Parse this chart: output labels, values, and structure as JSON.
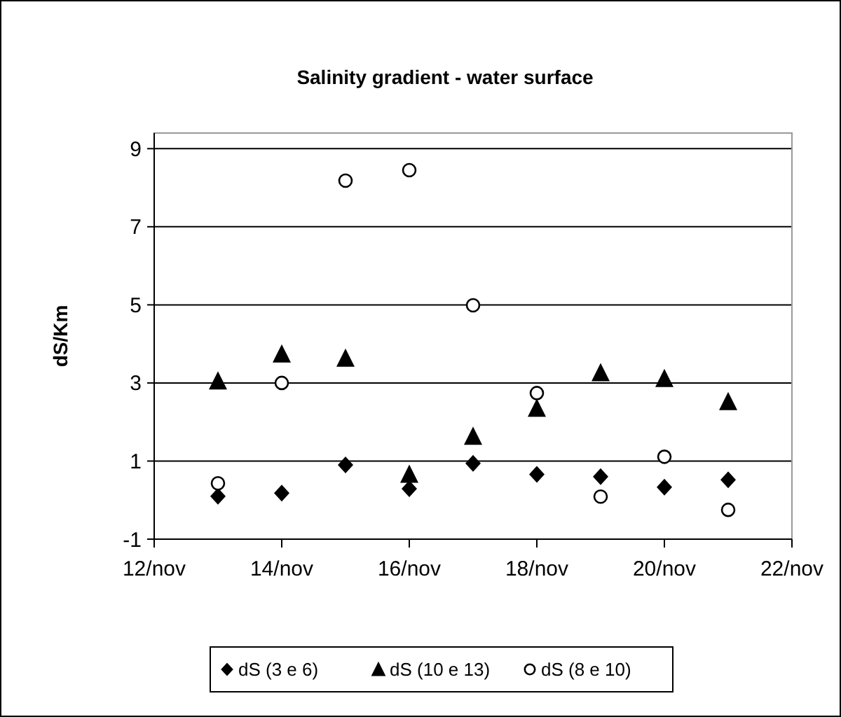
{
  "chart_data": {
    "type": "scatter",
    "title": "Salinity gradient - water surface",
    "ylabel": "dS/Km",
    "x": [
      "--11-13",
      "--11-14",
      "--11-15",
      "--11-16",
      "--11-17",
      "--11-18",
      "--11-19",
      "--11-20",
      "--11-21"
    ],
    "series": [
      {
        "name": "dS (3 e 6)",
        "color": "#000000",
        "marker": "diamond",
        "values": [
          0.1,
          0.18,
          0.9,
          0.29,
          0.94,
          0.66,
          0.6,
          0.33,
          0.52
        ]
      },
      {
        "name": "dS (10 e 13)",
        "color": "#000000",
        "marker": "triangle",
        "values": [
          3.05,
          3.74,
          3.63,
          0.66,
          1.63,
          2.35,
          3.26,
          3.11,
          2.52
        ]
      },
      {
        "name": "dS (8 e 10)",
        "color": "#000000",
        "marker": "circle",
        "values": [
          0.43,
          3.0,
          8.18,
          8.45,
          4.99,
          2.74,
          0.09,
          1.11,
          -0.25
        ]
      }
    ],
    "xlim": [
      "--11-12",
      "--11-22"
    ],
    "xticks": [
      {
        "value": "--11-12",
        "label": "12/nov"
      },
      {
        "value": "--11-14",
        "label": "14/nov"
      },
      {
        "value": "--11-16",
        "label": "16/nov"
      },
      {
        "value": "--11-18",
        "label": "18/nov"
      },
      {
        "value": "--11-20",
        "label": "20/nov"
      },
      {
        "value": "--11-22",
        "label": "22/nov"
      }
    ],
    "ylim": [
      -1,
      9.4
    ],
    "yticks": [
      -1,
      1,
      3,
      5,
      7,
      9
    ],
    "grid": "y",
    "legend": "bottom"
  }
}
